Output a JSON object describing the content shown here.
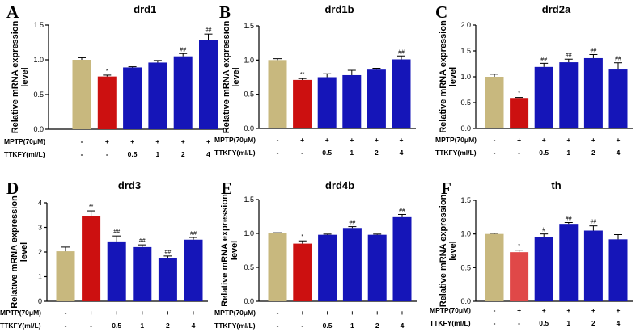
{
  "colors": {
    "control": "#c8b87e",
    "mptp": "#cc1010",
    "mptp_light": "#e04848",
    "treatment": "#1515b8"
  },
  "condition_rows": {
    "mptp_label": "MPTP(70μM)",
    "ttkfy_label": "TTKFY(ml/L)",
    "mptp_values": [
      "-",
      "+",
      "+",
      "+",
      "+",
      "+"
    ],
    "ttkfy_values": [
      "-",
      "-",
      "0.5",
      "1",
      "2",
      "4"
    ]
  },
  "chart_data": [
    {
      "panel": "A",
      "title": "drd1",
      "type": "bar",
      "ylabel": [
        "Relative mRNA expression",
        "level"
      ],
      "ylim": [
        0,
        1.5
      ],
      "yticks": [
        "0.0",
        "0.5",
        "1.0",
        "1.5"
      ],
      "values": [
        1.0,
        0.76,
        0.89,
        0.96,
        1.05,
        1.29
      ],
      "errors": [
        0.03,
        0.02,
        0.01,
        0.03,
        0.04,
        0.08
      ],
      "annotations": [
        "",
        "*",
        "",
        "",
        "##",
        "##"
      ]
    },
    {
      "panel": "B",
      "title": "drd1b",
      "type": "bar",
      "ylabel": [
        "Relative mRNA expression",
        "level"
      ],
      "ylim": [
        0,
        1.5
      ],
      "yticks": [
        "0.0",
        "0.5",
        "1.0",
        "1.5"
      ],
      "values": [
        1.0,
        0.71,
        0.75,
        0.78,
        0.86,
        1.01
      ],
      "errors": [
        0.02,
        0.02,
        0.05,
        0.07,
        0.02,
        0.05
      ],
      "annotations": [
        "",
        "**",
        "",
        "",
        "",
        "##"
      ]
    },
    {
      "panel": "C",
      "title": "drd2a",
      "type": "bar",
      "ylabel": [
        "Relative mRNA expression",
        "level"
      ],
      "ylim": [
        0,
        2.0
      ],
      "yticks": [
        "0.0",
        "0.5",
        "1.0",
        "1.5",
        "2.0"
      ],
      "values": [
        1.0,
        0.59,
        1.19,
        1.28,
        1.36,
        1.14
      ],
      "errors": [
        0.05,
        0.01,
        0.07,
        0.06,
        0.07,
        0.13
      ],
      "annotations": [
        "",
        "*",
        "##",
        "##",
        "##",
        "##"
      ]
    },
    {
      "panel": "D",
      "title": "drd3",
      "type": "bar",
      "ylabel": [
        "Relative mRNA expression",
        "level"
      ],
      "ylim": [
        0,
        4
      ],
      "yticks": [
        "0",
        "1",
        "2",
        "3",
        "4"
      ],
      "values": [
        2.03,
        3.45,
        2.43,
        2.2,
        1.77,
        2.5
      ],
      "errors": [
        0.17,
        0.22,
        0.22,
        0.09,
        0.07,
        0.09
      ],
      "annotations": [
        "",
        "**",
        "##",
        "##",
        "##",
        "##"
      ]
    },
    {
      "panel": "E",
      "title": "drd4b",
      "type": "bar",
      "ylabel": [
        "Relative mRNA expression",
        "level"
      ],
      "ylim": [
        0,
        1.5
      ],
      "yticks": [
        "0.0",
        "0.5",
        "1.0",
        "1.5"
      ],
      "values": [
        1.0,
        0.85,
        0.98,
        1.08,
        0.98,
        1.24
      ],
      "errors": [
        0.01,
        0.04,
        0.01,
        0.02,
        0.01,
        0.04
      ],
      "annotations": [
        "",
        "*",
        "",
        "##",
        "",
        "##"
      ]
    },
    {
      "panel": "F",
      "title": "th",
      "type": "bar",
      "ylabel": [
        "Relative mRNA expression",
        "level"
      ],
      "ylim": [
        0,
        1.5
      ],
      "yticks": [
        "0.0",
        "0.5",
        "1.0",
        "1.5"
      ],
      "values": [
        1.0,
        0.73,
        0.96,
        1.15,
        1.05,
        0.92
      ],
      "errors": [
        0.01,
        0.03,
        0.04,
        0.02,
        0.07,
        0.07
      ],
      "annotations": [
        "",
        "*",
        "#",
        "##",
        "##",
        ""
      ]
    }
  ]
}
